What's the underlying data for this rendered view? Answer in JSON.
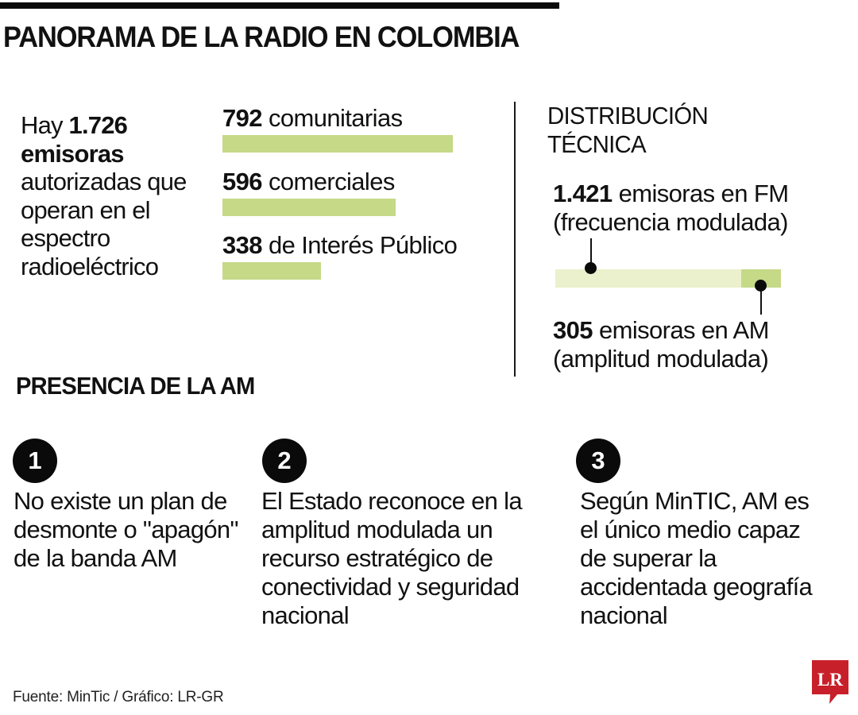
{
  "header": {
    "title": "PANORAMA DE LA RADIO EN COLOMBIA"
  },
  "intro": {
    "prefix": "Hay ",
    "total": "1.726",
    "bold_word": "emisoras",
    "rest": "autorizadas que operan en el espectro radioeléctrico"
  },
  "categories": [
    {
      "value": "792",
      "label": " comunitarias",
      "count": 792
    },
    {
      "value": "596",
      "label": " comerciales",
      "count": 596
    },
    {
      "value": "338",
      "label": " de Interés Público",
      "count": 338
    }
  ],
  "distribution": {
    "title_line1": "DISTRIBUCIÓN",
    "title_line2": "TÉCNICA",
    "fm": {
      "value": "1.421",
      "label": " emisoras en FM",
      "sub": "(frecuencia modulada)",
      "count": 1421
    },
    "am": {
      "value": "305",
      "label": " emisoras en AM",
      "sub": "(amplitud modulada)",
      "count": 305
    }
  },
  "presence": {
    "title": "PRESENCIA DE LA AM",
    "points": [
      {
        "number": "1",
        "text": "No existe un plan de desmonte o \"apagón\" de la banda AM"
      },
      {
        "number": "2",
        "text": "El Estado reconoce en la amplitud modulada un recurso estratégico de conectividad y seguridad nacional"
      },
      {
        "number": "3",
        "text": "Según MinTIC, AM es el único medio capaz de superar la accidentada geografía nacional"
      }
    ]
  },
  "footer": {
    "source": "Fuente: MinTic / Gráfico: LR-GR",
    "logo_text": "LR"
  },
  "colors": {
    "bar_green": "#C5D987",
    "fm_light": "#EAF1CC",
    "am_green": "#C5D987",
    "logo_red": "#C8202A",
    "ink": "#0a0a0a"
  },
  "chart_data": [
    {
      "type": "bar",
      "orientation": "horizontal",
      "title": "Emisoras autorizadas por tipo",
      "categories": [
        "comunitarias",
        "comerciales",
        "de Interés Público"
      ],
      "values": [
        792,
        596,
        338
      ],
      "total": 1726,
      "xlabel": "",
      "ylabel": "",
      "grid": false
    },
    {
      "type": "bar",
      "orientation": "horizontal-stacked",
      "title": "DISTRIBUCIÓN TÉCNICA",
      "series": [
        {
          "name": "FM (frecuencia modulada)",
          "values": [
            1421
          ]
        },
        {
          "name": "AM (amplitud modulada)",
          "values": [
            305
          ]
        }
      ],
      "categories": [
        "Emisoras"
      ],
      "total": 1726,
      "grid": false
    }
  ]
}
